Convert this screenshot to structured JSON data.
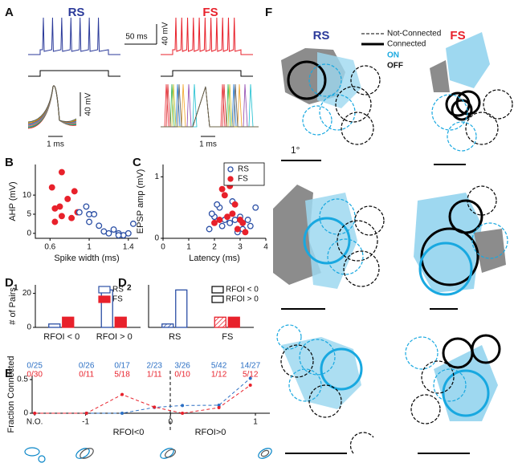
{
  "panel_a": {
    "label": "A",
    "rs": "RS",
    "fs": "FS",
    "time_scale": "50 ms",
    "volt_scale": "40 mV",
    "volt_scale_2": "40 mV",
    "time_scale_2": "1 ms",
    "time_scale_3": "1 ms"
  },
  "panel_f": {
    "label": "F",
    "rs": "RS",
    "fs": "FS",
    "legend": [
      "Not-Connected",
      "Connected",
      "ON",
      "OFF"
    ],
    "scale": "1°"
  },
  "chart_data": [
    {
      "type": "scatter",
      "label": "B",
      "xlabel": "Spike width (ms)",
      "ylabel": "AHP (mV)",
      "xlim": [
        0.45,
        1.5
      ],
      "ylim": [
        -1.3,
        18
      ],
      "xticks": [
        0.6,
        1,
        1.4
      ],
      "yticks": [
        0,
        5,
        10
      ],
      "series": [
        {
          "color": "#e8212b",
          "filled": true,
          "x": [
            0.62,
            0.72,
            0.65,
            0.72,
            0.78,
            0.82,
            0.85,
            0.88,
            0.65,
            0.7
          ],
          "values": [
            12,
            16,
            6.5,
            4.5,
            9,
            4,
            11,
            5.5,
            3,
            7
          ]
        },
        {
          "color": "#2b4fa5",
          "filled": false,
          "x": [
            0.9,
            0.97,
            1.0,
            1.05,
            1.0,
            1.1,
            1.2,
            1.25,
            1.3,
            1.35,
            1.4,
            1.45,
            1.15,
            1.3
          ],
          "values": [
            5.5,
            7,
            5,
            5,
            3,
            2,
            0,
            1,
            0,
            -0.5,
            0,
            2.5,
            0.5,
            -0.5
          ]
        }
      ]
    },
    {
      "type": "scatter",
      "label": "C",
      "xlabel": "Latency (ms)",
      "ylabel": "EPSP amp (mV)",
      "xlim": [
        0,
        4
      ],
      "ylim": [
        0,
        1.2
      ],
      "xticks": [
        0,
        1,
        2,
        3,
        4
      ],
      "yticks": [
        0,
        1
      ],
      "legend": "upper right",
      "series": [
        {
          "name": "RS",
          "color": "#2b4fa5",
          "filled": false,
          "x": [
            1.8,
            2.0,
            2.5,
            2.2,
            2.6,
            2.3,
            2.8,
            3.0,
            3.3,
            2.9,
            3.4,
            2.1,
            2.6,
            3.1,
            2.4,
            1.9,
            3.6,
            2.7
          ],
          "values": [
            0.15,
            0.35,
            1.1,
            0.5,
            0.95,
            0.2,
            0.3,
            0.35,
            0.3,
            0.1,
            0.2,
            0.55,
            0.25,
            0.15,
            0.3,
            0.4,
            0.5,
            0.6
          ]
        },
        {
          "name": "FS",
          "color": "#e8212b",
          "filled": true,
          "x": [
            2.0,
            2.3,
            2.6,
            2.8,
            2.2,
            2.5,
            2.9,
            3.1,
            2.7,
            3.0,
            2.4,
            3.2
          ],
          "values": [
            0.25,
            0.8,
            0.85,
            0.55,
            0.3,
            0.35,
            0.15,
            0.25,
            0.4,
            0.3,
            0.7,
            0.1
          ]
        }
      ]
    },
    {
      "type": "bar",
      "label": "D",
      "sublabel": "1",
      "ylabel": "# of Pairs",
      "categories": [
        "RFOI < 0",
        "RFOI > 0"
      ],
      "ylim": [
        0,
        25
      ],
      "yticks": [
        0,
        20
      ],
      "legend": "upper right",
      "series": [
        {
          "name": "RS",
          "color": "#2b4fa5",
          "style": "open",
          "values": [
            2,
            22
          ]
        },
        {
          "name": "FS",
          "color": "#e8212b",
          "style": "filled",
          "values": [
            6,
            6
          ]
        }
      ]
    },
    {
      "type": "bar",
      "label": "D",
      "sublabel": "2",
      "categories": [
        "RS",
        "FS"
      ],
      "category_colors": [
        "#2b4fa5",
        "#e8212b"
      ],
      "ylim": [
        0,
        25
      ],
      "legend": "upper right",
      "series": [
        {
          "name": "RFOI < 0",
          "styles": [
            "hatched",
            "hatched"
          ],
          "values": [
            2,
            6
          ]
        },
        {
          "name": "RFOI > 0",
          "styles": [
            "open",
            "filled"
          ],
          "values": [
            22,
            6
          ]
        }
      ]
    },
    {
      "type": "line",
      "label": "E",
      "ylabel": "Fraction Connected",
      "annotations": [
        "RFOI<0",
        "RFOI>0"
      ],
      "xlim": [
        -1.63,
        1.17
      ],
      "xticks": [
        {
          "value": -1.6,
          "label": "N.O."
        },
        -1,
        0,
        1
      ],
      "ylim": [
        0,
        0.56
      ],
      "yticks": [
        0,
        0.5
      ],
      "x": [
        -1.6,
        -0.99,
        -0.57,
        -0.19,
        0.14,
        0.57,
        0.94
      ],
      "series": [
        {
          "color": "#2b6fc4",
          "values": [
            0,
            0,
            0,
            0.087,
            0.115,
            0.119,
            0.519
          ],
          "value_labels": [
            "0/25",
            "0/26",
            "0/17",
            "2/23",
            "3/26",
            "5/42",
            "14/27"
          ]
        },
        {
          "color": "#e8212b",
          "values": [
            0,
            0,
            0.278,
            0.091,
            0,
            0.083,
            0.417
          ],
          "value_labels": [
            "0/30",
            "0/11",
            "5/18",
            "1/11",
            "0/10",
            "1/12",
            "5/12"
          ]
        }
      ]
    }
  ]
}
